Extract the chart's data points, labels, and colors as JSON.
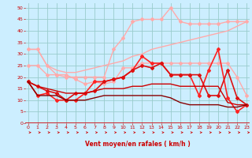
{
  "xlabel": "Vent moyen/en rafales ( km/h )",
  "bg_color": "#cceeff",
  "grid_color": "#99cccc",
  "x_ticks": [
    0,
    1,
    2,
    3,
    4,
    5,
    6,
    7,
    8,
    9,
    10,
    11,
    12,
    13,
    14,
    15,
    16,
    17,
    18,
    19,
    20,
    21,
    22,
    23
  ],
  "y_ticks": [
    0,
    5,
    10,
    15,
    20,
    25,
    30,
    35,
    40,
    45,
    50
  ],
  "ylim": [
    0,
    52
  ],
  "xlim": [
    -0.3,
    23.3
  ],
  "series": [
    {
      "color": "#ffaaaa",
      "linewidth": 1.0,
      "marker": null,
      "markersize": 0,
      "data": [
        [
          0,
          32
        ],
        [
          1,
          32
        ],
        [
          2,
          25
        ],
        [
          3,
          23
        ],
        [
          4,
          22
        ],
        [
          5,
          22
        ],
        [
          6,
          23
        ],
        [
          7,
          24
        ],
        [
          8,
          25
        ],
        [
          9,
          26
        ],
        [
          10,
          27
        ],
        [
          11,
          29
        ],
        [
          12,
          30
        ],
        [
          13,
          32
        ],
        [
          14,
          33
        ],
        [
          15,
          34
        ],
        [
          16,
          35
        ],
        [
          17,
          36
        ],
        [
          18,
          37
        ],
        [
          19,
          38
        ],
        [
          20,
          39
        ],
        [
          21,
          40
        ],
        [
          22,
          42
        ],
        [
          23,
          44
        ]
      ]
    },
    {
      "color": "#ffaaaa",
      "linewidth": 1.0,
      "marker": "D",
      "markersize": 2.0,
      "data": [
        [
          0,
          32
        ],
        [
          1,
          32
        ],
        [
          2,
          25
        ],
        [
          3,
          21
        ],
        [
          4,
          20
        ],
        [
          5,
          20
        ],
        [
          6,
          20
        ],
        [
          7,
          20
        ],
        [
          8,
          20
        ],
        [
          9,
          32
        ],
        [
          10,
          37
        ],
        [
          11,
          44
        ],
        [
          12,
          45
        ],
        [
          13,
          45
        ],
        [
          14,
          45
        ],
        [
          15,
          50
        ],
        [
          16,
          44
        ],
        [
          17,
          43
        ],
        [
          18,
          43
        ],
        [
          19,
          43
        ],
        [
          20,
          43
        ],
        [
          21,
          44
        ],
        [
          22,
          44
        ],
        [
          23,
          44
        ]
      ]
    },
    {
      "color": "#ffaaaa",
      "linewidth": 1.0,
      "marker": "D",
      "markersize": 2.0,
      "data": [
        [
          0,
          25
        ],
        [
          1,
          25
        ],
        [
          2,
          21
        ],
        [
          3,
          21
        ],
        [
          4,
          21
        ],
        [
          5,
          19
        ],
        [
          6,
          17
        ],
        [
          7,
          18
        ],
        [
          8,
          17
        ],
        [
          9,
          18
        ],
        [
          10,
          24
        ],
        [
          11,
          24
        ],
        [
          12,
          26
        ],
        [
          13,
          26
        ],
        [
          14,
          26
        ],
        [
          15,
          26
        ],
        [
          16,
          26
        ],
        [
          17,
          26
        ],
        [
          18,
          26
        ],
        [
          19,
          26
        ],
        [
          20,
          26
        ],
        [
          21,
          26
        ],
        [
          22,
          20
        ],
        [
          23,
          12
        ]
      ]
    },
    {
      "color": "#ff2222",
      "linewidth": 1.2,
      "marker": "D",
      "markersize": 2.0,
      "data": [
        [
          0,
          18
        ],
        [
          1,
          12
        ],
        [
          2,
          13
        ],
        [
          3,
          10
        ],
        [
          4,
          10
        ],
        [
          5,
          10
        ],
        [
          6,
          13
        ],
        [
          7,
          18
        ],
        [
          8,
          18
        ],
        [
          9,
          19
        ],
        [
          10,
          20
        ],
        [
          11,
          23
        ],
        [
          12,
          29
        ],
        [
          13,
          26
        ],
        [
          14,
          26
        ],
        [
          15,
          21
        ],
        [
          16,
          21
        ],
        [
          17,
          21
        ],
        [
          18,
          12
        ],
        [
          19,
          23
        ],
        [
          20,
          32
        ],
        [
          21,
          11
        ],
        [
          22,
          5
        ],
        [
          23,
          8
        ]
      ]
    },
    {
      "color": "#dd1111",
      "linewidth": 1.2,
      "marker": "D",
      "markersize": 2.0,
      "data": [
        [
          0,
          18
        ],
        [
          1,
          16
        ],
        [
          2,
          14
        ],
        [
          3,
          13
        ],
        [
          4,
          10
        ],
        [
          5,
          13
        ],
        [
          6,
          13
        ],
        [
          7,
          14
        ],
        [
          8,
          18
        ],
        [
          9,
          19
        ],
        [
          10,
          20
        ],
        [
          11,
          23
        ],
        [
          12,
          25
        ],
        [
          13,
          24
        ],
        [
          14,
          26
        ],
        [
          15,
          21
        ],
        [
          16,
          21
        ],
        [
          17,
          21
        ],
        [
          18,
          21
        ],
        [
          19,
          12
        ],
        [
          20,
          12
        ],
        [
          21,
          23
        ],
        [
          22,
          11
        ],
        [
          23,
          8
        ]
      ]
    },
    {
      "color": "#cc0000",
      "linewidth": 1.0,
      "marker": null,
      "markersize": 0,
      "data": [
        [
          0,
          18
        ],
        [
          1,
          16
        ],
        [
          2,
          15
        ],
        [
          3,
          14
        ],
        [
          4,
          13
        ],
        [
          5,
          13
        ],
        [
          6,
          13
        ],
        [
          7,
          14
        ],
        [
          8,
          15
        ],
        [
          9,
          15
        ],
        [
          10,
          15
        ],
        [
          11,
          16
        ],
        [
          12,
          16
        ],
        [
          13,
          17
        ],
        [
          14,
          17
        ],
        [
          15,
          17
        ],
        [
          16,
          16
        ],
        [
          17,
          16
        ],
        [
          18,
          16
        ],
        [
          19,
          16
        ],
        [
          20,
          16
        ],
        [
          21,
          9
        ],
        [
          22,
          8
        ],
        [
          23,
          8
        ]
      ]
    },
    {
      "color": "#880000",
      "linewidth": 1.0,
      "marker": null,
      "markersize": 0,
      "data": [
        [
          0,
          18
        ],
        [
          1,
          12
        ],
        [
          2,
          12
        ],
        [
          3,
          12
        ],
        [
          4,
          10
        ],
        [
          5,
          10
        ],
        [
          6,
          10
        ],
        [
          7,
          11
        ],
        [
          8,
          12
        ],
        [
          9,
          12
        ],
        [
          10,
          12
        ],
        [
          11,
          12
        ],
        [
          12,
          12
        ],
        [
          13,
          12
        ],
        [
          14,
          12
        ],
        [
          15,
          11
        ],
        [
          16,
          9
        ],
        [
          17,
          8
        ],
        [
          18,
          8
        ],
        [
          19,
          8
        ],
        [
          20,
          8
        ],
        [
          21,
          7
        ],
        [
          22,
          7
        ],
        [
          23,
          8
        ]
      ]
    }
  ]
}
